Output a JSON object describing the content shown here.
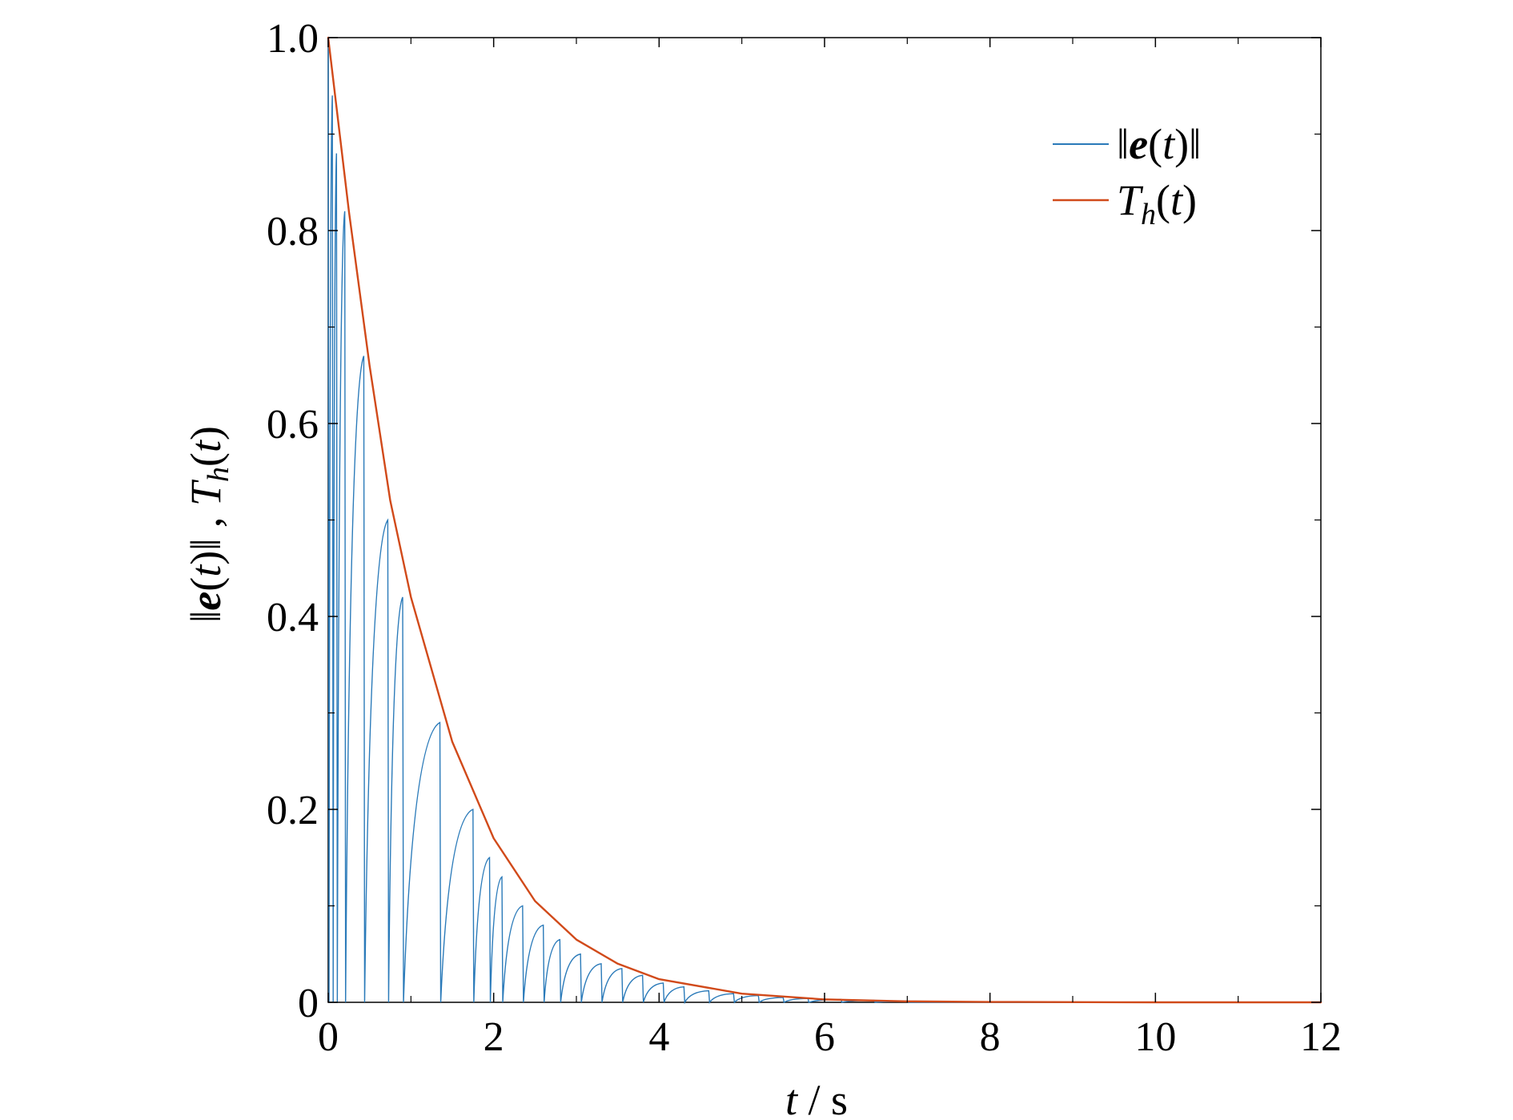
{
  "chart_data": {
    "type": "line",
    "xlabel": "t / s",
    "ylabel": "‖e(t)‖ , T_h(t)",
    "xlim": [
      0,
      12
    ],
    "ylim": [
      0,
      1.0
    ],
    "xticks": [
      0,
      2,
      4,
      6,
      8,
      10,
      12
    ],
    "yticks": [
      0,
      0.2,
      0.4,
      0.6,
      0.8,
      1.0
    ],
    "xtick_labels": [
      "0",
      "2",
      "4",
      "6",
      "8",
      "10",
      "12"
    ],
    "ytick_labels": [
      "0",
      "0.2",
      "0.4",
      "0.6",
      "0.8",
      "1.0"
    ],
    "grid": false,
    "legend_position": "top-right",
    "series": [
      {
        "name": "‖e(t)‖",
        "color": "#2a7ab9",
        "style": "sawtooth",
        "peaks": [
          [
            0.05,
            0.94
          ],
          [
            0.1,
            0.88
          ],
          [
            0.2,
            0.82
          ],
          [
            0.43,
            0.67
          ],
          [
            0.72,
            0.5
          ],
          [
            0.9,
            0.42
          ],
          [
            1.35,
            0.29
          ],
          [
            1.75,
            0.2
          ],
          [
            1.95,
            0.15
          ],
          [
            2.1,
            0.13
          ],
          [
            2.35,
            0.1
          ],
          [
            2.6,
            0.08
          ],
          [
            2.8,
            0.065
          ],
          [
            3.05,
            0.05
          ],
          [
            3.3,
            0.04
          ],
          [
            3.55,
            0.035
          ],
          [
            3.8,
            0.028
          ],
          [
            4.05,
            0.02
          ],
          [
            4.3,
            0.016
          ],
          [
            4.6,
            0.012
          ],
          [
            4.9,
            0.009
          ],
          [
            5.2,
            0.007
          ],
          [
            5.5,
            0.005
          ],
          [
            5.8,
            0.004
          ],
          [
            6.2,
            0.003
          ],
          [
            6.6,
            0.002
          ],
          [
            7.0,
            0.001
          ]
        ]
      },
      {
        "name": "T_h(t)",
        "color": "#d14a1a",
        "style": "smooth",
        "x": [
          0,
          0.25,
          0.5,
          0.75,
          1.0,
          1.5,
          2.0,
          2.5,
          3.0,
          3.5,
          4.0,
          5.0,
          6.0,
          7.0,
          8.0,
          10.0,
          12.0
        ],
        "y": [
          1.0,
          0.82,
          0.66,
          0.52,
          0.42,
          0.27,
          0.17,
          0.105,
          0.065,
          0.04,
          0.024,
          0.009,
          0.003,
          0.001,
          0.0004,
          0.0,
          0.0
        ]
      }
    ]
  }
}
